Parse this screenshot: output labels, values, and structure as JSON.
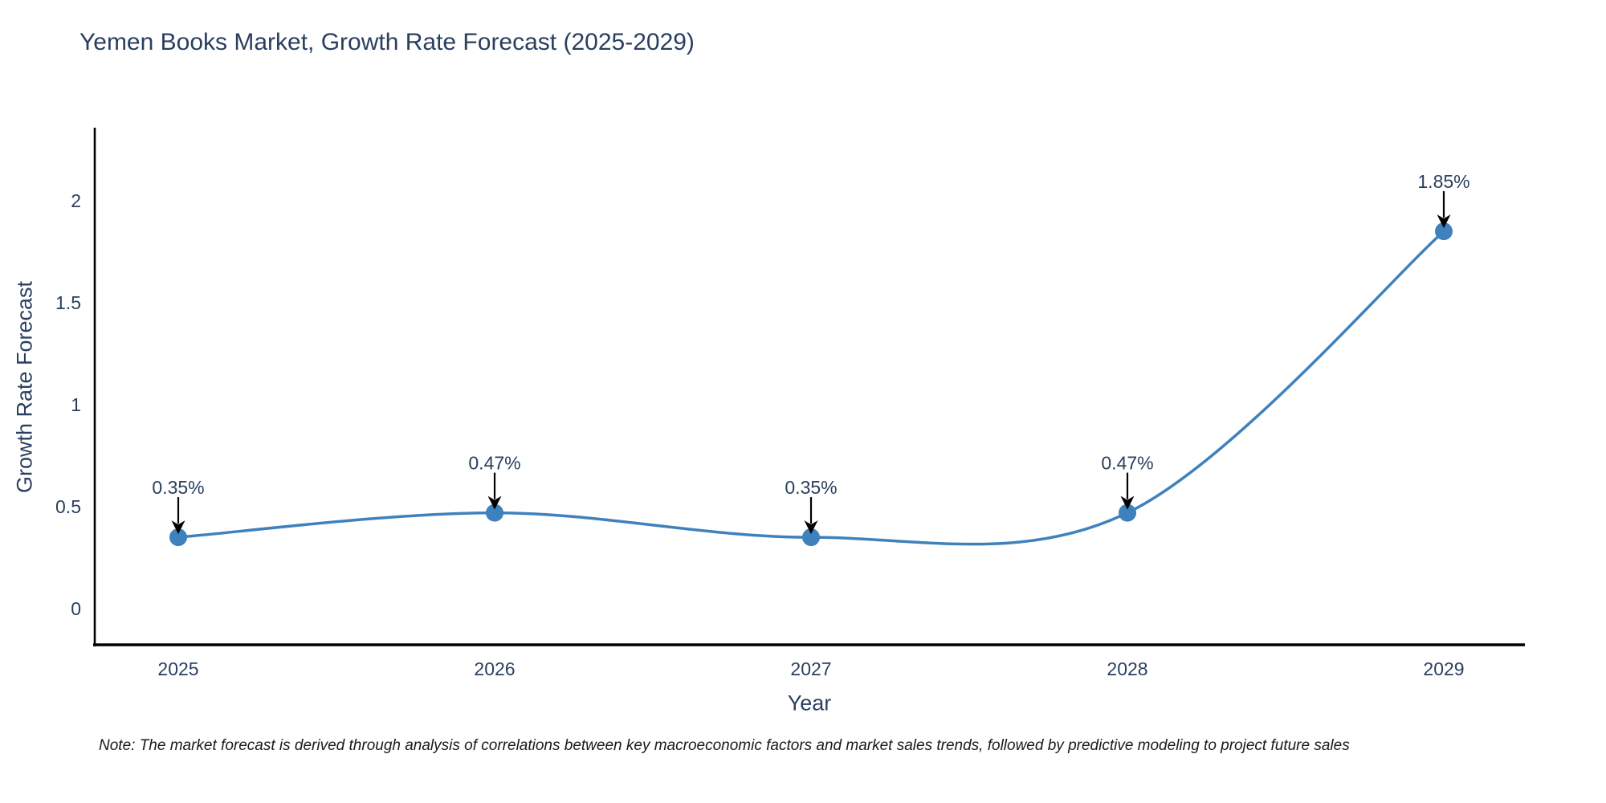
{
  "chart_data": {
    "type": "line",
    "title": "Yemen Books Market, Growth Rate Forecast (2025-2029)",
    "xlabel": "Year",
    "ylabel": "Growth Rate Forecast",
    "categories": [
      "2025",
      "2026",
      "2027",
      "2028",
      "2029"
    ],
    "series": [
      {
        "name": "Growth Rate Forecast",
        "values": [
          0.35,
          0.47,
          0.35,
          0.47,
          1.85
        ]
      }
    ],
    "point_labels": [
      "0.35%",
      "0.47%",
      "0.35%",
      "0.47%",
      "1.85%"
    ],
    "line_shape": "spline",
    "grid": false,
    "legend": "none",
    "ylim": [
      -0.18,
      2.54
    ],
    "yticks": [
      0,
      0.5,
      1,
      1.5,
      2
    ],
    "ytick_labels": [
      "0",
      "0.5",
      "1",
      "1.5",
      "2"
    ],
    "colors": {
      "line": "#3f81bd",
      "marker": "#3f81bd",
      "axis_line": "#000000",
      "tick_text": "#2a3f5f",
      "annotation_text": "#2a3f5f",
      "annotation_arrow": "#000000",
      "background": "#ffffff"
    }
  },
  "note": "Note: The market forecast is derived through analysis of correlations between key macroeconomic factors and market sales trends, followed by predictive modeling to project future sales"
}
